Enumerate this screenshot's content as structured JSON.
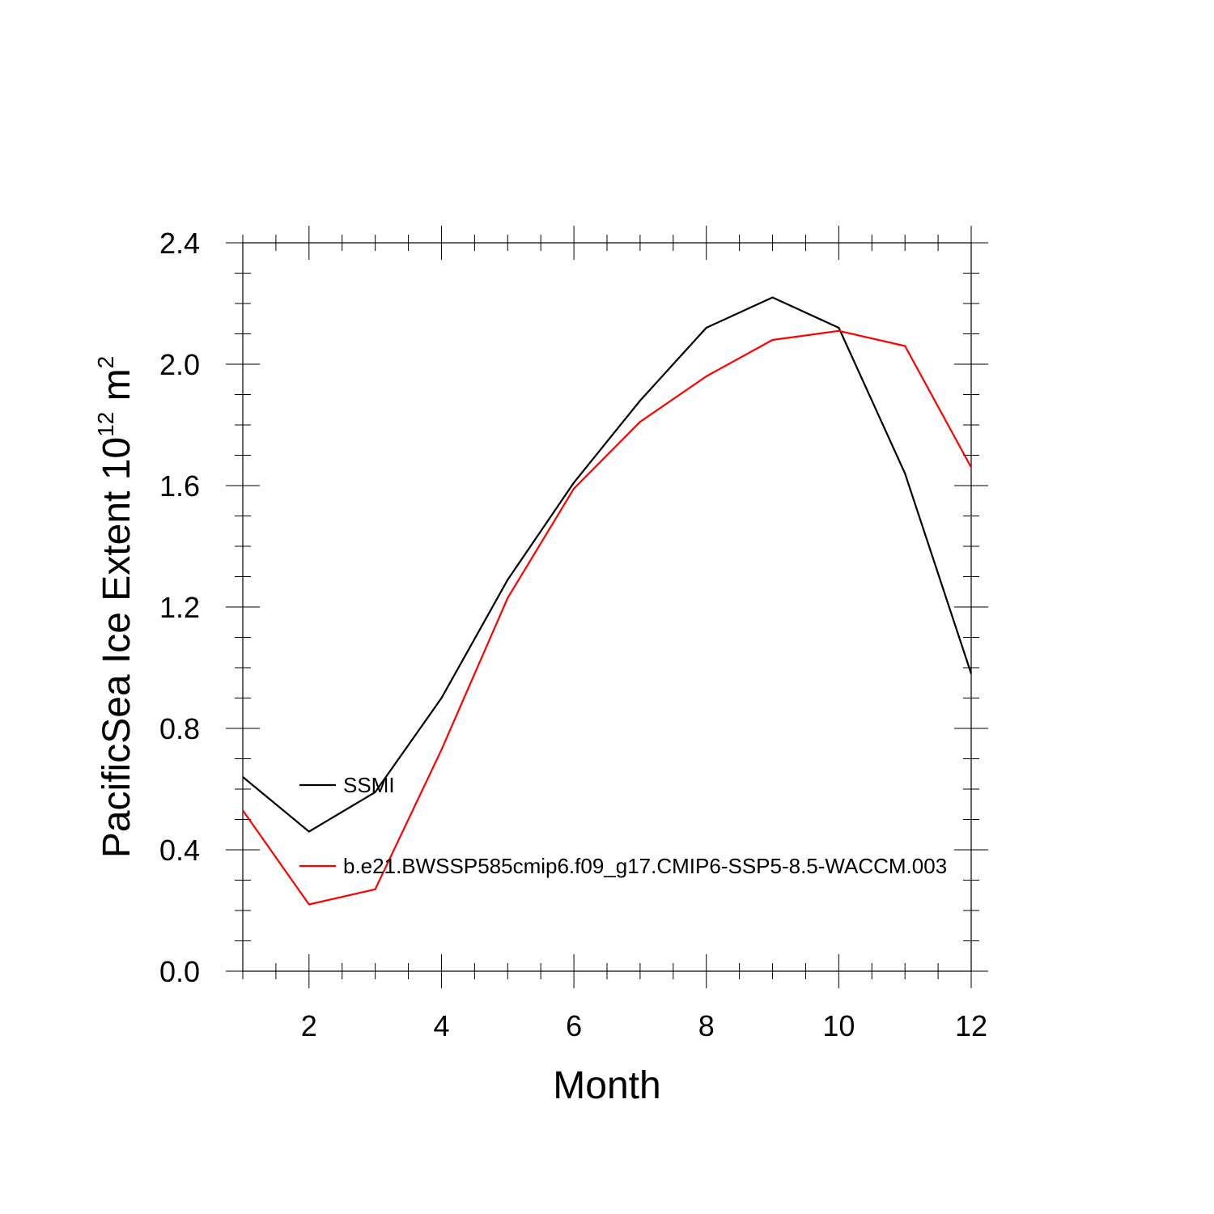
{
  "chart_data": {
    "type": "line",
    "xlabel": "Month",
    "ylabel": {
      "prefix": "PacificSea Ice Extent 10",
      "superscript": "12",
      "unit": " m",
      "unit_superscript": "2"
    },
    "xlim": [
      1,
      12
    ],
    "ylim": [
      0,
      2.4
    ],
    "xticks": [
      2,
      4,
      6,
      8,
      10,
      12
    ],
    "xtick_labels": [
      "2",
      "4",
      "6",
      "8",
      "10",
      "12"
    ],
    "yticks": [
      0,
      0.4,
      0.8,
      1.2,
      1.6,
      2.0,
      2.4
    ],
    "ytick_labels": [
      "0.0",
      "0.4",
      "0.8",
      "1.2",
      "1.6",
      "2.0",
      "2.4"
    ],
    "grid": false,
    "legend_placement": "left-inside",
    "x": [
      1,
      2,
      3,
      4,
      5,
      6,
      7,
      8,
      9,
      10,
      11,
      12
    ],
    "series": [
      {
        "name": "SSMI",
        "color": "#000000",
        "values": [
          0.64,
          0.46,
          0.59,
          0.9,
          1.29,
          1.61,
          1.88,
          2.12,
          2.22,
          2.12,
          1.64,
          0.98
        ]
      },
      {
        "name": "b.e21.BWSSP585cmip6.f09_g17.CMIP6-SSP5-8.5-WACCM.003",
        "color": "#ff0000",
        "values": [
          0.53,
          0.22,
          0.27,
          0.73,
          1.23,
          1.59,
          1.81,
          1.96,
          2.08,
          2.11,
          2.06,
          1.66
        ]
      }
    ]
  }
}
